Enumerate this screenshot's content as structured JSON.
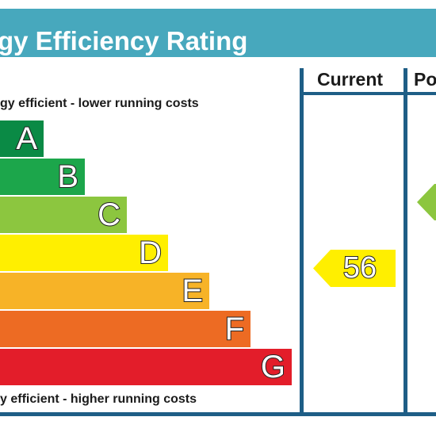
{
  "header": {
    "title": "gy Efficiency Rating"
  },
  "columns": {
    "current": "Current",
    "potential": "Po"
  },
  "notes": {
    "top": "gy efficient - lower running costs",
    "bottom": "y efficient - higher running costs"
  },
  "bands": [
    {
      "letter": "A",
      "color": "#0a8a45"
    },
    {
      "letter": "B",
      "color": "#1ca64b"
    },
    {
      "letter": "C",
      "color": "#8cc63f"
    },
    {
      "letter": "D",
      "color": "#ffef00"
    },
    {
      "letter": "E",
      "color": "#f7b327"
    },
    {
      "letter": "F",
      "color": "#ed6b23"
    },
    {
      "letter": "G",
      "color": "#e31d2a"
    }
  ],
  "current_rating": {
    "value": "56",
    "color": "#ffef00"
  },
  "potential_rating": {
    "color": "#8cc63f"
  }
}
